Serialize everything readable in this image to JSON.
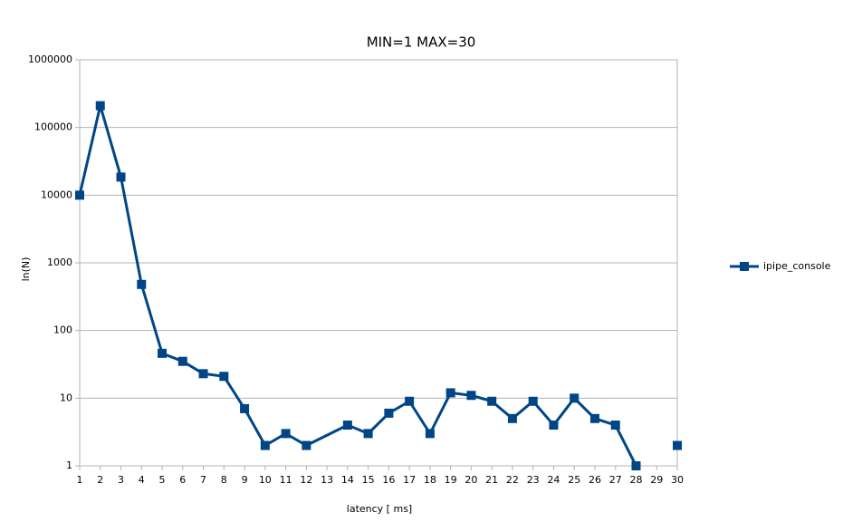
{
  "chart_data": {
    "type": "line",
    "title": "MIN=1  MAX=30",
    "x_label": "latency  [ ms]",
    "y_label": "ln(N)",
    "x": [
      1,
      2,
      3,
      4,
      5,
      6,
      7,
      8,
      9,
      10,
      11,
      12,
      14,
      15,
      16,
      17,
      18,
      19,
      20,
      21,
      22,
      23,
      24,
      25,
      26,
      27,
      28,
      29,
      30
    ],
    "series": [
      {
        "name": "ipipe_console",
        "color": "#004586",
        "values": [
          10000,
          210000,
          18500,
          480,
          46,
          35,
          23,
          21,
          7,
          2,
          3,
          2,
          4,
          3,
          6,
          9,
          3,
          12,
          11,
          9,
          5,
          9,
          4,
          10,
          5,
          4,
          1,
          null,
          2
        ]
      }
    ],
    "xlim": [
      1,
      30
    ],
    "xticks": [
      1,
      2,
      3,
      4,
      5,
      6,
      7,
      8,
      9,
      10,
      11,
      12,
      13,
      14,
      15,
      16,
      17,
      18,
      19,
      20,
      21,
      22,
      23,
      24,
      25,
      26,
      27,
      28,
      29,
      30
    ],
    "ylim": [
      1,
      1000000
    ],
    "yticks": [
      1,
      10,
      100,
      1000,
      10000,
      100000,
      1000000
    ],
    "y_scale": "log",
    "grid": true,
    "legend": "right"
  }
}
